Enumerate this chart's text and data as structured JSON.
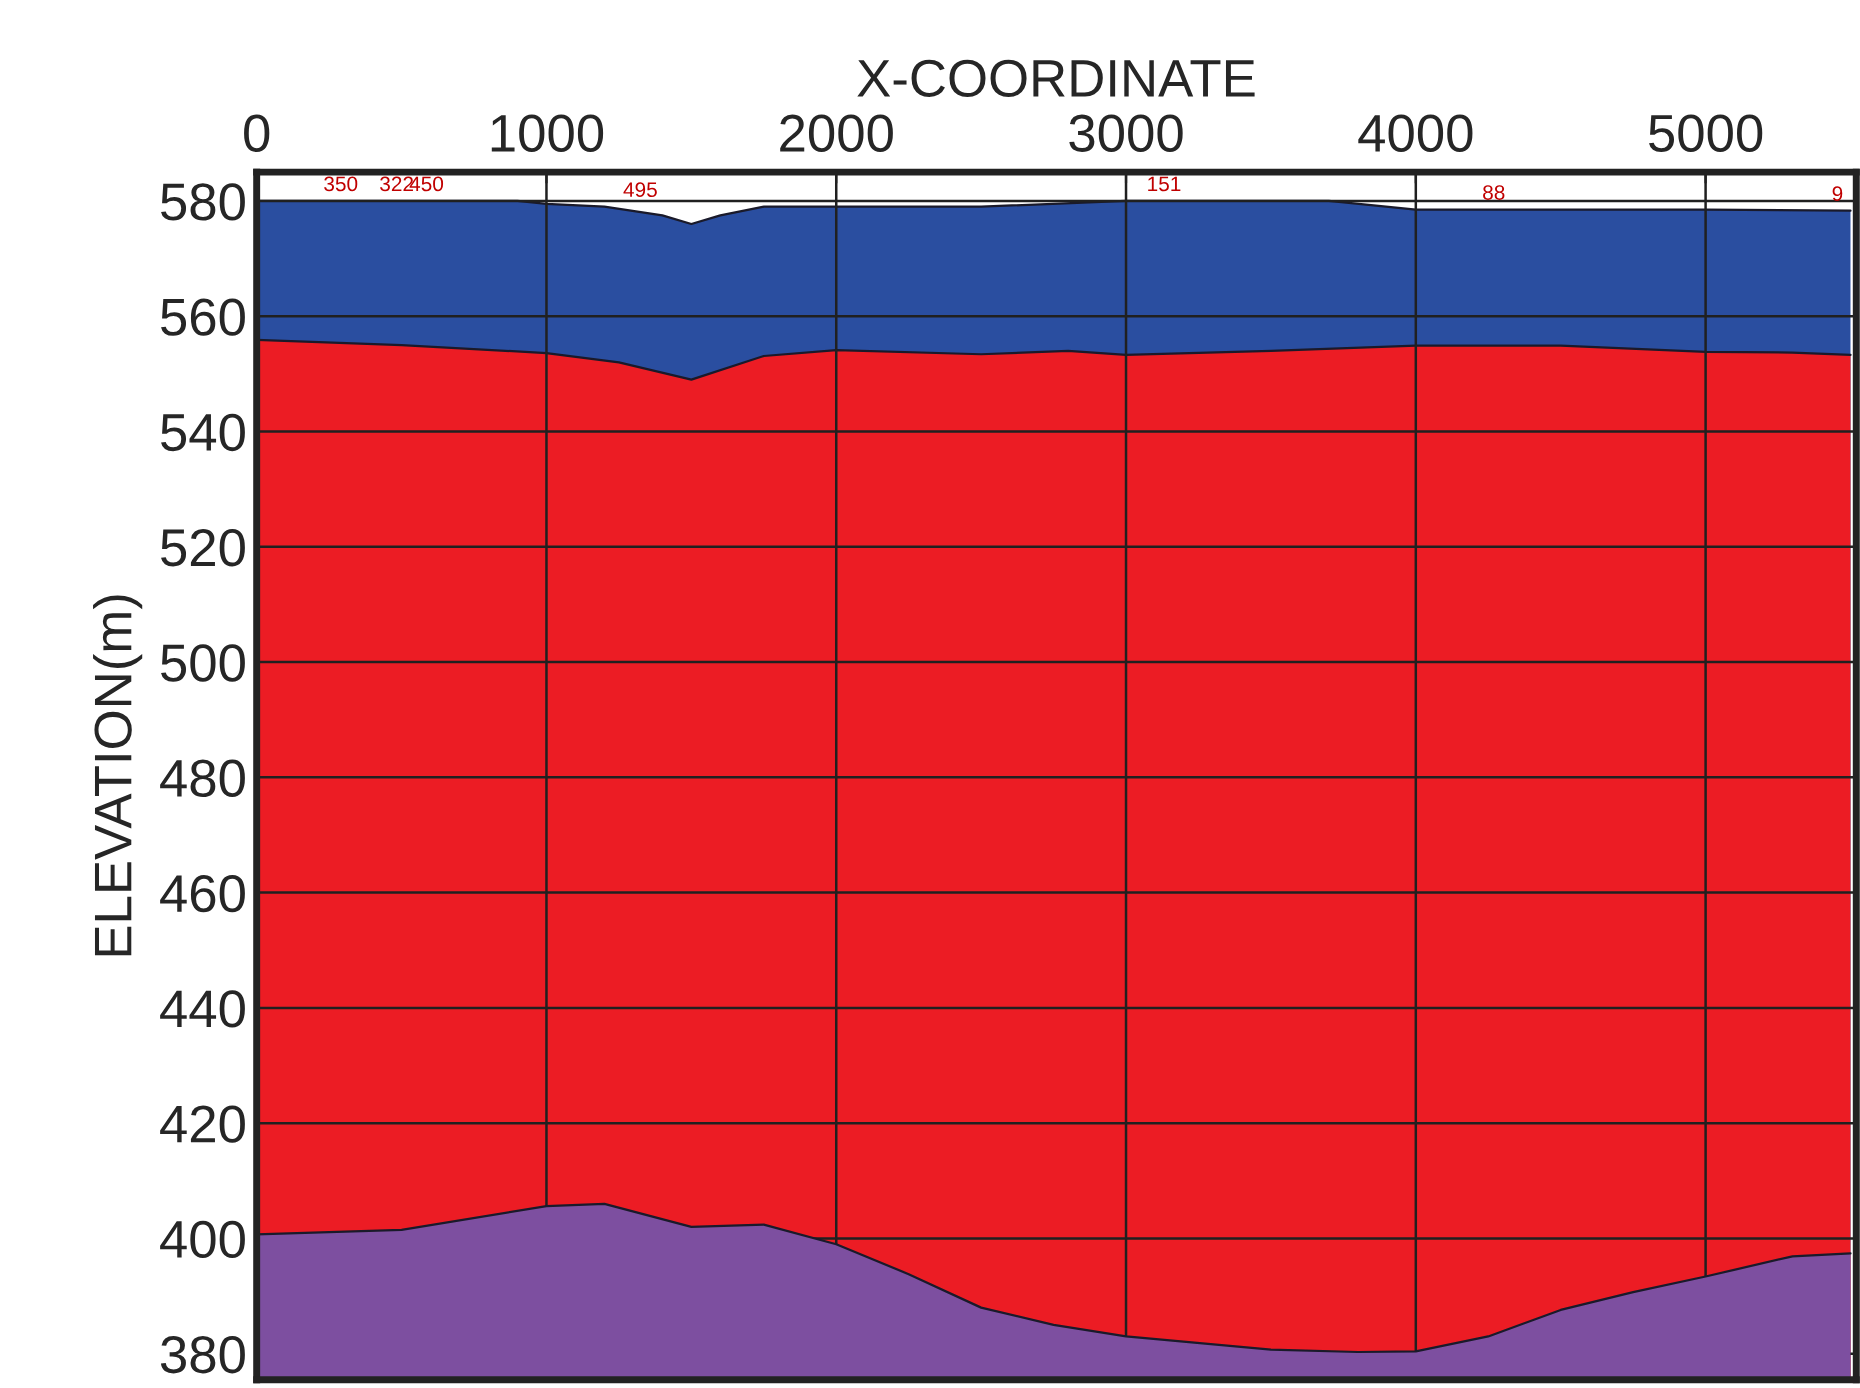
{
  "chart_data": {
    "type": "area",
    "xlabel": "X-COORDINATE",
    "ylabel": "ELEVATION(m)",
    "xlim": [
      0,
      5520
    ],
    "xticks": [
      0,
      1000,
      2000,
      3000,
      4000,
      5000
    ],
    "ylim": [
      375.5,
      585
    ],
    "yticks": [
      380,
      400,
      420,
      440,
      460,
      480,
      500,
      520,
      540,
      560,
      580
    ],
    "grid": true,
    "legend": false,
    "series": [
      {
        "color": "#2a4ea0",
        "x": [
          0,
          500,
          900,
          1000,
          1200,
          1400,
          1500,
          1600,
          1750,
          2000,
          2500,
          3000,
          3500,
          3700,
          4000,
          4500,
          5000,
          5500
        ],
        "values": [
          580,
          580,
          580,
          579.5,
          579,
          577.5,
          576,
          577.5,
          579,
          579,
          579,
          580,
          580,
          580,
          578.5,
          578.5,
          578.5,
          578.3
        ]
      },
      {
        "color": "#ec1c24",
        "x": [
          0,
          500,
          1000,
          1250,
          1500,
          1750,
          2000,
          2500,
          2800,
          3000,
          3500,
          4000,
          4500,
          5000,
          5300,
          5500
        ],
        "values": [
          555.9,
          555,
          553.6,
          552,
          549,
          553.1,
          554.1,
          553.4,
          554,
          553.3,
          554,
          554.9,
          554.9,
          553.8,
          553.7,
          553.3
        ]
      },
      {
        "color": "#7d4fa0",
        "x": [
          0,
          500,
          1000,
          1200,
          1500,
          1750,
          2000,
          2250,
          2500,
          2750,
          3000,
          3500,
          3800,
          4000,
          4250,
          4500,
          4750,
          5000,
          5300,
          5500
        ],
        "values": [
          400.7,
          401.5,
          405.6,
          406,
          402,
          402.4,
          399,
          393.8,
          388,
          385,
          383,
          380.7,
          380.3,
          380.4,
          383,
          387.6,
          390.7,
          393.4,
          396.9,
          397.4
        ]
      }
    ],
    "annotations": [
      {
        "text": "350",
        "x": 290,
        "y": 580
      },
      {
        "text": "322",
        "x": 483,
        "y": 580
      },
      {
        "text": "450",
        "x": 586,
        "y": 580
      },
      {
        "text": "495",
        "x": 1324,
        "y": 579
      },
      {
        "text": "151",
        "x": 3131,
        "y": 580
      },
      {
        "text": "88",
        "x": 4269,
        "y": 578.5
      },
      {
        "text": "9",
        "x": 5455,
        "y": 578.3
      }
    ]
  }
}
